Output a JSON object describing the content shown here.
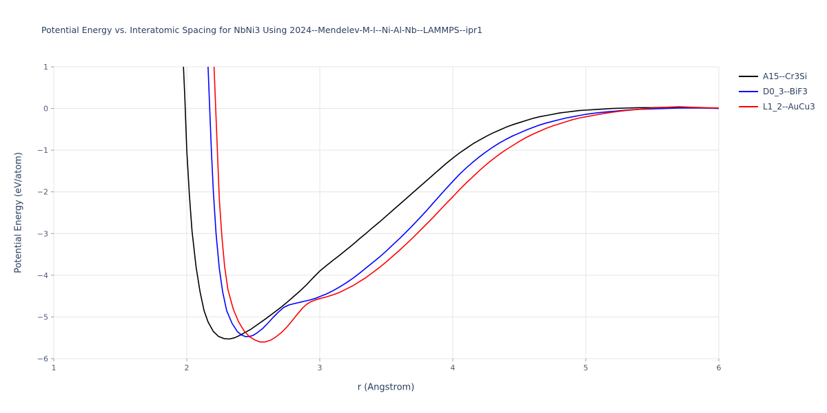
{
  "colors": {
    "background": "#ffffff",
    "title": "#2a3f5f",
    "axis_label": "#2a3f5f",
    "tick_label": "#4c5c77",
    "grid": "#e4e4e4",
    "tick_mark": "#9b9b9b",
    "legend_text": "#2a3f5f"
  },
  "chart_data": {
    "type": "line",
    "title": "Potential Energy vs. Interatomic Spacing for NbNi3 Using 2024--Mendelev-M-I--Ni-Al-Nb--LAMMPS--ipr1",
    "xlabel": "r (Angstrom)",
    "ylabel": "Potential Energy (eV/atom)",
    "xlim": [
      1,
      6
    ],
    "ylim": [
      -6,
      1
    ],
    "xticks": [
      1,
      2,
      3,
      4,
      5,
      6
    ],
    "yticks": [
      -6,
      -5,
      -4,
      -3,
      -2,
      -1,
      0,
      1
    ],
    "grid": true,
    "legend_position": "top-right-outside",
    "series": [
      {
        "name": "A15--Cr3Si",
        "color": "#000000",
        "points": [
          [
            1.975,
            1.0
          ],
          [
            1.985,
            0.3
          ],
          [
            2.0,
            -1.0
          ],
          [
            2.02,
            -2.1
          ],
          [
            2.04,
            -2.95
          ],
          [
            2.07,
            -3.8
          ],
          [
            2.1,
            -4.4
          ],
          [
            2.13,
            -4.85
          ],
          [
            2.16,
            -5.12
          ],
          [
            2.2,
            -5.35
          ],
          [
            2.24,
            -5.47
          ],
          [
            2.28,
            -5.52
          ],
          [
            2.32,
            -5.53
          ],
          [
            2.36,
            -5.5
          ],
          [
            2.4,
            -5.44
          ],
          [
            2.44,
            -5.37
          ],
          [
            2.48,
            -5.3
          ],
          [
            2.52,
            -5.21
          ],
          [
            2.56,
            -5.12
          ],
          [
            2.6,
            -5.03
          ],
          [
            2.65,
            -4.91
          ],
          [
            2.7,
            -4.79
          ],
          [
            2.75,
            -4.66
          ],
          [
            2.8,
            -4.52
          ],
          [
            2.85,
            -4.38
          ],
          [
            2.9,
            -4.23
          ],
          [
            2.95,
            -4.06
          ],
          [
            3.0,
            -3.9
          ],
          [
            3.05,
            -3.77
          ],
          [
            3.1,
            -3.64
          ],
          [
            3.15,
            -3.52
          ],
          [
            3.2,
            -3.39
          ],
          [
            3.25,
            -3.26
          ],
          [
            3.3,
            -3.12
          ],
          [
            3.35,
            -2.99
          ],
          [
            3.4,
            -2.85
          ],
          [
            3.45,
            -2.72
          ],
          [
            3.5,
            -2.58
          ],
          [
            3.55,
            -2.44
          ],
          [
            3.6,
            -2.3
          ],
          [
            3.65,
            -2.16
          ],
          [
            3.7,
            -2.02
          ],
          [
            3.75,
            -1.88
          ],
          [
            3.8,
            -1.74
          ],
          [
            3.85,
            -1.6
          ],
          [
            3.9,
            -1.46
          ],
          [
            3.95,
            -1.32
          ],
          [
            4.0,
            -1.19
          ],
          [
            4.05,
            -1.07
          ],
          [
            4.1,
            -0.96
          ],
          [
            4.15,
            -0.85
          ],
          [
            4.2,
            -0.76
          ],
          [
            4.25,
            -0.67
          ],
          [
            4.3,
            -0.59
          ],
          [
            4.35,
            -0.52
          ],
          [
            4.4,
            -0.45
          ],
          [
            4.45,
            -0.39
          ],
          [
            4.5,
            -0.34
          ],
          [
            4.55,
            -0.29
          ],
          [
            4.6,
            -0.24
          ],
          [
            4.65,
            -0.2
          ],
          [
            4.7,
            -0.17
          ],
          [
            4.75,
            -0.14
          ],
          [
            4.8,
            -0.11
          ],
          [
            4.85,
            -0.09
          ],
          [
            4.9,
            -0.07
          ],
          [
            4.95,
            -0.05
          ],
          [
            5.0,
            -0.04
          ],
          [
            5.1,
            -0.02
          ],
          [
            5.2,
            0.0
          ],
          [
            5.3,
            0.01
          ],
          [
            5.4,
            0.02
          ],
          [
            5.5,
            0.02
          ],
          [
            5.6,
            0.03
          ],
          [
            5.7,
            0.02
          ],
          [
            5.8,
            0.02
          ],
          [
            5.9,
            0.01
          ],
          [
            6.0,
            0.01
          ]
        ]
      },
      {
        "name": "D0_3--BiF3",
        "color": "#0000ff",
        "points": [
          [
            2.16,
            1.0
          ],
          [
            2.17,
            0.2
          ],
          [
            2.185,
            -1.0
          ],
          [
            2.2,
            -2.0
          ],
          [
            2.22,
            -3.0
          ],
          [
            2.245,
            -3.85
          ],
          [
            2.27,
            -4.4
          ],
          [
            2.3,
            -4.85
          ],
          [
            2.34,
            -5.15
          ],
          [
            2.38,
            -5.35
          ],
          [
            2.41,
            -5.43
          ],
          [
            2.44,
            -5.47
          ],
          [
            2.47,
            -5.47
          ],
          [
            2.5,
            -5.44
          ],
          [
            2.53,
            -5.38
          ],
          [
            2.57,
            -5.28
          ],
          [
            2.61,
            -5.15
          ],
          [
            2.65,
            -5.01
          ],
          [
            2.69,
            -4.88
          ],
          [
            2.73,
            -4.77
          ],
          [
            2.77,
            -4.71
          ],
          [
            2.81,
            -4.68
          ],
          [
            2.85,
            -4.65
          ],
          [
            2.89,
            -4.62
          ],
          [
            2.93,
            -4.59
          ],
          [
            2.97,
            -4.55
          ],
          [
            3.01,
            -4.5
          ],
          [
            3.05,
            -4.45
          ],
          [
            3.1,
            -4.37
          ],
          [
            3.15,
            -4.28
          ],
          [
            3.2,
            -4.18
          ],
          [
            3.25,
            -4.07
          ],
          [
            3.3,
            -3.95
          ],
          [
            3.35,
            -3.82
          ],
          [
            3.4,
            -3.69
          ],
          [
            3.45,
            -3.56
          ],
          [
            3.5,
            -3.42
          ],
          [
            3.55,
            -3.27
          ],
          [
            3.6,
            -3.12
          ],
          [
            3.65,
            -2.96
          ],
          [
            3.7,
            -2.8
          ],
          [
            3.75,
            -2.63
          ],
          [
            3.8,
            -2.46
          ],
          [
            3.85,
            -2.28
          ],
          [
            3.9,
            -2.1
          ],
          [
            3.95,
            -1.92
          ],
          [
            4.0,
            -1.75
          ],
          [
            4.05,
            -1.58
          ],
          [
            4.1,
            -1.43
          ],
          [
            4.15,
            -1.29
          ],
          [
            4.2,
            -1.16
          ],
          [
            4.25,
            -1.04
          ],
          [
            4.3,
            -0.93
          ],
          [
            4.35,
            -0.83
          ],
          [
            4.4,
            -0.74
          ],
          [
            4.45,
            -0.66
          ],
          [
            4.5,
            -0.59
          ],
          [
            4.55,
            -0.52
          ],
          [
            4.6,
            -0.46
          ],
          [
            4.65,
            -0.4
          ],
          [
            4.7,
            -0.35
          ],
          [
            4.75,
            -0.31
          ],
          [
            4.8,
            -0.27
          ],
          [
            4.85,
            -0.23
          ],
          [
            4.9,
            -0.2
          ],
          [
            4.95,
            -0.17
          ],
          [
            5.0,
            -0.14
          ],
          [
            5.1,
            -0.1
          ],
          [
            5.2,
            -0.07
          ],
          [
            5.3,
            -0.04
          ],
          [
            5.4,
            -0.02
          ],
          [
            5.5,
            -0.01
          ],
          [
            5.6,
            0.0
          ],
          [
            5.7,
            0.01
          ],
          [
            5.8,
            0.01
          ],
          [
            5.9,
            0.01
          ],
          [
            6.0,
            0.0
          ]
        ]
      },
      {
        "name": "L1_2--AuCu3",
        "color": "#ff0000",
        "points": [
          [
            2.205,
            1.0
          ],
          [
            2.215,
            0.2
          ],
          [
            2.23,
            -1.0
          ],
          [
            2.245,
            -2.2
          ],
          [
            2.265,
            -3.1
          ],
          [
            2.285,
            -3.8
          ],
          [
            2.31,
            -4.35
          ],
          [
            2.35,
            -4.82
          ],
          [
            2.39,
            -5.12
          ],
          [
            2.43,
            -5.33
          ],
          [
            2.47,
            -5.47
          ],
          [
            2.51,
            -5.55
          ],
          [
            2.55,
            -5.6
          ],
          [
            2.59,
            -5.6
          ],
          [
            2.63,
            -5.56
          ],
          [
            2.67,
            -5.48
          ],
          [
            2.71,
            -5.38
          ],
          [
            2.75,
            -5.25
          ],
          [
            2.79,
            -5.1
          ],
          [
            2.83,
            -4.94
          ],
          [
            2.87,
            -4.79
          ],
          [
            2.9,
            -4.7
          ],
          [
            2.93,
            -4.64
          ],
          [
            2.96,
            -4.6
          ],
          [
            3.0,
            -4.56
          ],
          [
            3.05,
            -4.52
          ],
          [
            3.1,
            -4.47
          ],
          [
            3.15,
            -4.41
          ],
          [
            3.2,
            -4.33
          ],
          [
            3.25,
            -4.25
          ],
          [
            3.3,
            -4.15
          ],
          [
            3.35,
            -4.05
          ],
          [
            3.4,
            -3.93
          ],
          [
            3.45,
            -3.81
          ],
          [
            3.5,
            -3.68
          ],
          [
            3.55,
            -3.54
          ],
          [
            3.6,
            -3.4
          ],
          [
            3.65,
            -3.25
          ],
          [
            3.7,
            -3.1
          ],
          [
            3.75,
            -2.94
          ],
          [
            3.8,
            -2.78
          ],
          [
            3.85,
            -2.62
          ],
          [
            3.9,
            -2.45
          ],
          [
            3.95,
            -2.28
          ],
          [
            4.0,
            -2.12
          ],
          [
            4.05,
            -1.95
          ],
          [
            4.1,
            -1.79
          ],
          [
            4.15,
            -1.64
          ],
          [
            4.2,
            -1.49
          ],
          [
            4.25,
            -1.35
          ],
          [
            4.3,
            -1.22
          ],
          [
            4.35,
            -1.1
          ],
          [
            4.4,
            -0.99
          ],
          [
            4.45,
            -0.89
          ],
          [
            4.5,
            -0.79
          ],
          [
            4.55,
            -0.7
          ],
          [
            4.6,
            -0.62
          ],
          [
            4.65,
            -0.55
          ],
          [
            4.7,
            -0.48
          ],
          [
            4.75,
            -0.42
          ],
          [
            4.8,
            -0.37
          ],
          [
            4.85,
            -0.32
          ],
          [
            4.9,
            -0.27
          ],
          [
            4.95,
            -0.23
          ],
          [
            5.0,
            -0.2
          ],
          [
            5.1,
            -0.14
          ],
          [
            5.2,
            -0.09
          ],
          [
            5.3,
            -0.05
          ],
          [
            5.4,
            -0.02
          ],
          [
            5.5,
            0.01
          ],
          [
            5.6,
            0.03
          ],
          [
            5.7,
            0.04
          ],
          [
            5.8,
            0.03
          ],
          [
            5.9,
            0.02
          ],
          [
            6.0,
            0.01
          ]
        ]
      }
    ]
  }
}
